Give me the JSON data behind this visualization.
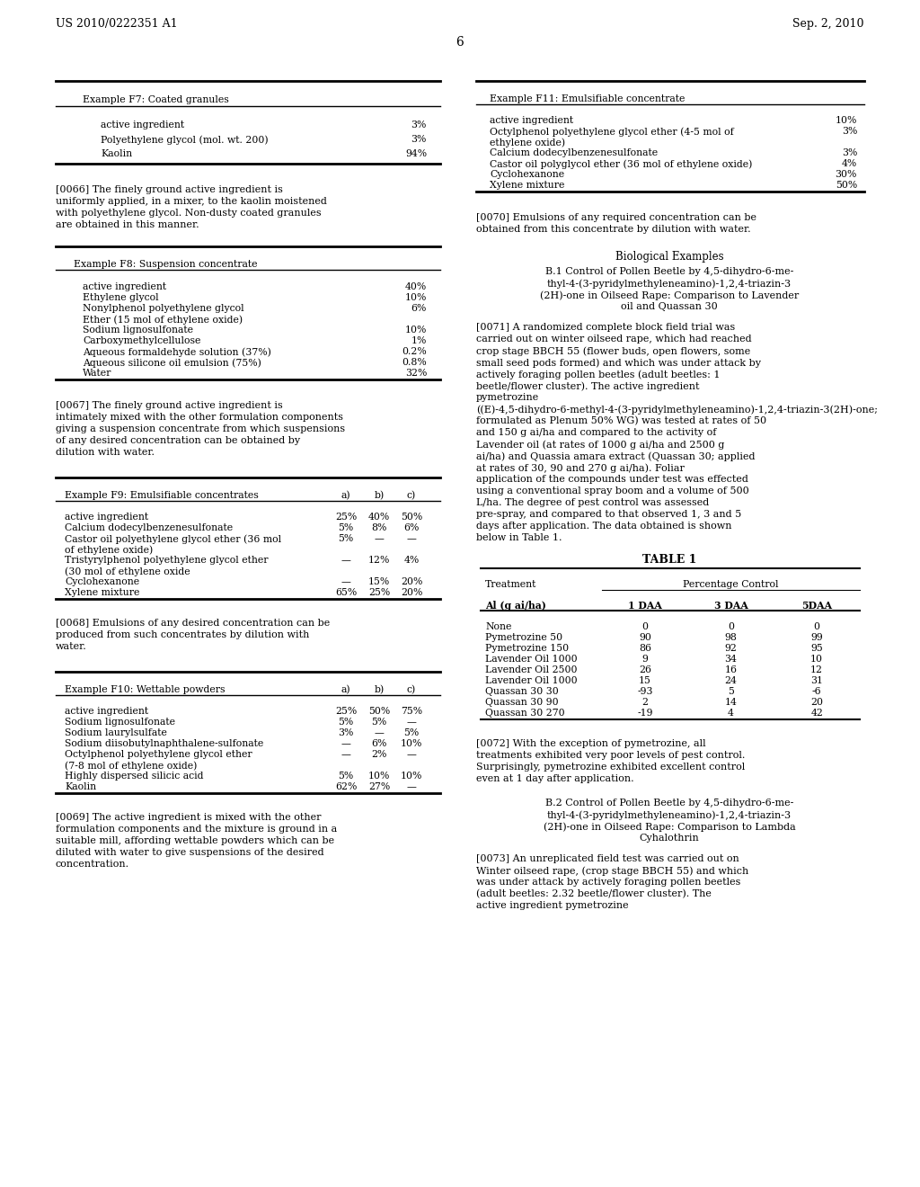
{
  "header_left": "US 2010/0222351 A1",
  "header_right": "Sep. 2, 2010",
  "page_number": "6",
  "bg_color": "#ffffff",
  "text_color": "#000000",
  "example_f7": {
    "title": "Example F7: Coated granules",
    "rows": [
      [
        "active ingredient",
        "3%"
      ],
      [
        "Polyethylene glycol (mol. wt. 200)",
        "3%"
      ],
      [
        "Kaolin",
        "94%"
      ]
    ]
  },
  "example_f11": {
    "title": "Example F11: Emulsifiable concentrate",
    "rows": [
      [
        "active ingredient",
        "10%"
      ],
      [
        "Octylphenol polyethylene glycol ether (4-5 mol of\nethylene oxide)",
        "3%"
      ],
      [
        "Calcium dodecylbenzenesulfonate",
        "3%"
      ],
      [
        "Castor oil polyglycol ether (36 mol of ethylene oxide)",
        "4%"
      ],
      [
        "Cyclohexanone",
        "30%"
      ],
      [
        "Xylene mixture",
        "50%"
      ]
    ]
  },
  "para_0066": "[0066]   The finely ground active ingredient is uniformly applied, in a mixer, to the kaolin moistened with polyethylene glycol. Non-dusty coated granules are obtained in this manner.",
  "para_0070": "[0070]   Emulsions of any required concentration can be obtained from this concentrate by dilution with water.",
  "bio_examples_title": "Biological Examples",
  "b1_title": "B.1 Control of Pollen Beetle by 4,5-dihydro-6-me-\nthyl-4-(3-pyridylmethyleneamino)-1,2,4-triazin-3\n(2H)-one in Oilseed Rape: Comparison to Lavender\noil and Quassan 30",
  "example_f8": {
    "title": "Example F8: Suspension concentrate",
    "rows": [
      [
        "active ingredient",
        "40%"
      ],
      [
        "Ethylene glycol",
        "10%"
      ],
      [
        "Nonylphenol polyethylene glycol",
        "6%"
      ],
      [
        "Ether (15 mol of ethylene oxide)",
        ""
      ],
      [
        "Sodium lignosulfonate",
        "10%"
      ],
      [
        "Carboxymethylcellulose",
        "1%"
      ],
      [
        "Aqueous formaldehyde solution (37%)",
        "0.2%"
      ],
      [
        "Aqueous silicone oil emulsion (75%)",
        "0.8%"
      ],
      [
        "Water",
        "32%"
      ]
    ]
  },
  "para_0067": "[0067]   The finely ground active ingredient is intimately mixed with the other formulation components giving a suspension concentrate from which suspensions of any desired concentration can be obtained by dilution with water.",
  "para_0071": "[0071]   A randomized complete block field trial was carried out on winter oilseed rape, which had reached crop stage BBCH 55 (flower buds, open flowers, some small seed pods formed) and which was under attack by actively foraging pollen beetles (adult beetles: 1 beetle/flower cluster). The active ingredient pymetrozine ((E)-4,5-dihydro-6-methyl-4-(3-pyridylmethyleneamino)-1,2,4-triazin-3(2H)-one; formulated as Plenum 50% WG) was tested at rates of 50 and 150 g ai/ha and compared to the activity of Lavender oil (at rates of 1000 g ai/ha and 2500 g ai/ha) and Quassia amara extract (Quassan 30; applied at rates of 30, 90 and 270 g ai/ha). Foliar application of the compounds under test was effected using a conventional spray boom and a volume of 500 L/ha. The degree of pest control was assessed pre-spray, and compared to that observed 1, 3 and 5 days after application. The data obtained is shown below in Table 1.",
  "example_f9": {
    "title": "Example F9: Emulsifiable concentrates",
    "cols": [
      "a)",
      "b)",
      "c)"
    ],
    "rows": [
      [
        "active ingredient",
        "25%",
        "40%",
        "50%"
      ],
      [
        "Calcium dodecylbenzenesulfonate",
        "5%",
        "8%",
        "6%"
      ],
      [
        "Castor oil polyethylene glycol ether (36 mol\nof ethylene oxide)",
        "5%",
        "—",
        "—"
      ],
      [
        "Tristyrylphenol polyethylene glycol ether\n(30 mol of ethylene oxide",
        "—",
        "12%",
        "4%"
      ],
      [
        "Cyclohexanone",
        "—",
        "15%",
        "20%"
      ],
      [
        "Xylene mixture",
        "65%",
        "25%",
        "20%"
      ]
    ]
  },
  "para_0068": "[0068]   Emulsions of any desired concentration can be produced from such concentrates by dilution with water.",
  "table1_title": "TABLE 1",
  "table1_header1": "Treatment",
  "table1_header2": "Percentage Control",
  "table1_col_headers": [
    "Al (g ai/ha)",
    "1 DAA",
    "3 DAA",
    "5DAA"
  ],
  "table1_rows": [
    [
      "None",
      "0",
      "0",
      "0"
    ],
    [
      "Pymetrozine 50",
      "90",
      "98",
      "99"
    ],
    [
      "Pymetrozine 150",
      "86",
      "92",
      "95"
    ],
    [
      "Lavender Oil 1000",
      "9",
      "34",
      "10"
    ],
    [
      "Lavender Oil 2500",
      "26",
      "16",
      "12"
    ],
    [
      "Lavender Oil 1000",
      "15",
      "24",
      "31"
    ],
    [
      "Quassan 30 30",
      "-93",
      "5",
      "-6"
    ],
    [
      "Quassan 30 90",
      "2",
      "14",
      "20"
    ],
    [
      "Quassan 30 270",
      "-19",
      "4",
      "42"
    ]
  ],
  "example_f10": {
    "title": "Example F10: Wettable powders",
    "cols": [
      "a)",
      "b)",
      "c)"
    ],
    "rows": [
      [
        "active ingredient",
        "25%",
        "50%",
        "75%"
      ],
      [
        "Sodium lignosulfonate",
        "5%",
        "5%",
        "—"
      ],
      [
        "Sodium laurylsulfate",
        "3%",
        "—",
        "5%"
      ],
      [
        "Sodium diisobutylnaphthalene-sulfonate",
        "—",
        "6%",
        "10%"
      ],
      [
        "Octylphenol polyethylene glycol ether\n(7-8 mol of ethylene oxide)",
        "—",
        "2%",
        "—"
      ],
      [
        "Highly dispersed silicic acid",
        "5%",
        "10%",
        "10%"
      ],
      [
        "Kaolin",
        "62%",
        "27%",
        "—"
      ]
    ]
  },
  "para_0069": "[0069]   The active ingredient is mixed with the other formulation components and the mixture is ground in a suitable mill, affording wettable powders which can be diluted with water to give suspensions of the desired concentration.",
  "b2_title": "B.2 Control of Pollen Beetle by 4,5-dihydro-6-me-\nthyl-4-(3-pyridylmethyleneamino)-1,2,4-triazin-3\n(2H)-one in Oilseed Rape: Comparison to Lambda\nCyhalothrin",
  "para_0072": "[0072]   With the exception of pymetrozine, all treatments exhibited very poor levels of pest control. Surprisingly, pymetrozine exhibited excellent control even at 1 day after application.",
  "para_0073_partial": "[0073]   An unreplicated field test was carried out on Winter oilseed rape, (crop stage BBCH 55) and which was under attack by actively foraging pollen beetles (adult beetles: 2.32 beetle/flower cluster). The active ingredient pymetrozine"
}
